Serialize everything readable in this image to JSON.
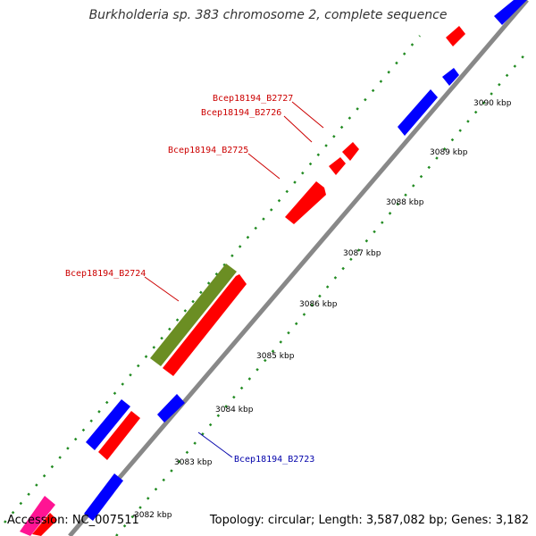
{
  "title": "Burkholderia sp. 383 chromosome 2, complete sequence",
  "footer": {
    "accession": "Accession: NC_007511",
    "summary": "Topology: circular; Length: 3,587,082 bp; Genes: 3,182"
  },
  "colors": {
    "backbone": "#888888",
    "forward_gene": "#ff0000",
    "reverse_gene": "#0000ff",
    "feature_green": "#6b8e23",
    "tick_green": "#228b22",
    "forward_label": "#cc0000",
    "reverse_label": "#0000aa"
  },
  "ticks": [
    {
      "label": "3082 kbp"
    },
    {
      "label": "3083 kbp"
    },
    {
      "label": "3084 kbp"
    },
    {
      "label": "3085 kbp"
    },
    {
      "label": "3086 kbp"
    },
    {
      "label": "3087 kbp"
    },
    {
      "label": "3088 kbp"
    },
    {
      "label": "3089 kbp"
    },
    {
      "label": "3090 kbp"
    }
  ],
  "gene_labels": [
    {
      "text": "Bcep18194_B2727",
      "strand": "forward"
    },
    {
      "text": "Bcep18194_B2726",
      "strand": "forward"
    },
    {
      "text": "Bcep18194_B2725",
      "strand": "forward"
    },
    {
      "text": "Bcep18194_B2724",
      "strand": "forward"
    },
    {
      "text": "Bcep18194_B2723",
      "strand": "reverse"
    }
  ]
}
